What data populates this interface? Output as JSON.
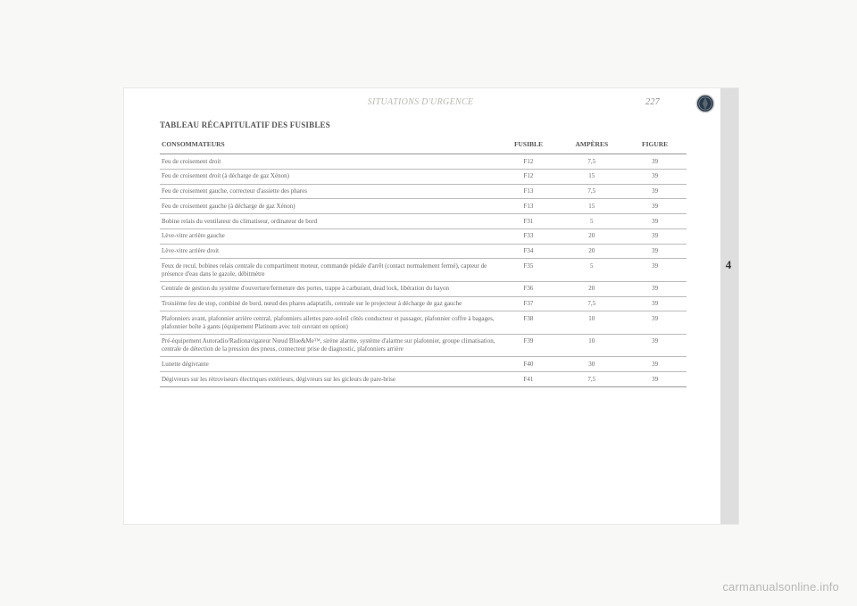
{
  "header": {
    "section_title": "SITUATIONS D'URGENCE",
    "page_number": "227"
  },
  "chapter_tab": "4",
  "badge": {
    "label": "LANCIA",
    "bg": "#2a3a4a",
    "ring": "#c8c8c8"
  },
  "table": {
    "title": "TABLEAU RÉCAPITULATIF DES FUSIBLES",
    "columns": {
      "consommateurs": "CONSOMMATEURS",
      "fusible": "FUSIBLE",
      "amperes": "AMPÈRES",
      "figure": "FIGURE"
    },
    "rows": [
      {
        "c": "Feu de croisement droit",
        "f": "F12",
        "a": "7,5",
        "fig": "39"
      },
      {
        "c": "Feu de croisement droit (à décharge de gaz Xénon)",
        "f": "F12",
        "a": "15",
        "fig": "39"
      },
      {
        "c": "Feu de croisement gauche, correcteur d'assiette des phares",
        "f": "F13",
        "a": "7,5",
        "fig": "39"
      },
      {
        "c": "Feu de croisement gauche (à décharge de gaz Xénon)",
        "f": "F13",
        "a": "15",
        "fig": "39"
      },
      {
        "c": "Bobine relais du ventilateur du climatiseur, ordinateur de bord",
        "f": "F31",
        "a": "5",
        "fig": "39"
      },
      {
        "c": "Lève-vitre arrière gauche",
        "f": "F33",
        "a": "20",
        "fig": "39"
      },
      {
        "c": "Lève-vitre arrière droit",
        "f": "F34",
        "a": "20",
        "fig": "39"
      },
      {
        "c": "Feux de recul, bobines relais centrale du compartiment moteur, commande pédale d'arrêt (contact normalement fermé), capteur de présence d'eau dans le gazole, débitmètre",
        "f": "F35",
        "a": "5",
        "fig": "39"
      },
      {
        "c": "Centrale de gestion du système d'ouverture/fermeture des portes, trappe à carburant, dead lock, libération du hayon",
        "f": "F36",
        "a": "20",
        "fig": "39"
      },
      {
        "c": "Troisième feu de stop, combiné de bord, nœud des phares adaptatifs, centrale sur le projecteur à décharge de gaz gauche",
        "f": "F37",
        "a": "7,5",
        "fig": "39"
      },
      {
        "c": "Plafonniers avant, plafonnier arrière central, plafonniers ailettes pare-soleil côtés conducteur et passager, plafonnier coffre à bagages, plafonnier boîte à gants (équipement Platinum avec toit ouvrant en option)",
        "f": "F38",
        "a": "10",
        "fig": "39"
      },
      {
        "c": "Pré-équipement Autoradio/Radionavigateur Nœud Blue&Me™, sirène alarme, système d'alarme sur plafonnier, groupe climatisation, centrale de détection de la pression des pneus, connecteur prise de diagnostic, plafonniers arrière",
        "f": "F39",
        "a": "10",
        "fig": "39"
      },
      {
        "c": "Lunette dégivrante",
        "f": "F40",
        "a": "30",
        "fig": "39"
      },
      {
        "c": "Dégivreurs sur les rétroviseurs électriques extérieurs, dégivreurs sur les gicleurs de pare-brise",
        "f": "F41",
        "a": "7,5",
        "fig": "39"
      }
    ]
  },
  "watermark": "carmanualsonline.info"
}
